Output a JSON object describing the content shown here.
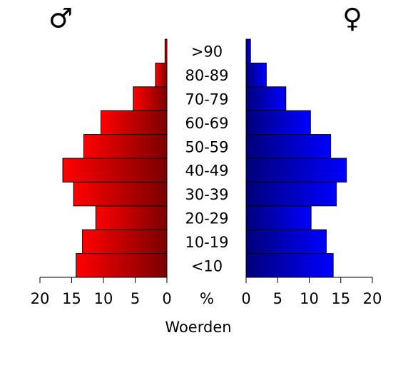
{
  "chart_data": {
    "type": "pyramid",
    "xlabel": "Woerden",
    "center_label": "%",
    "categories": [
      "<10",
      "10-19",
      "20-29",
      "30-39",
      "40-49",
      "50-59",
      "60-69",
      "70-79",
      "80-89",
      ">90"
    ],
    "series": [
      {
        "name": "♂",
        "color": "#ff0000",
        "values": [
          14.3,
          13.3,
          11.2,
          14.7,
          16.4,
          13.1,
          10.4,
          5.3,
          1.8,
          0.3
        ]
      },
      {
        "name": "♀",
        "color": "#0000ff",
        "values": [
          13.8,
          12.7,
          10.3,
          14.3,
          15.9,
          13.4,
          10.2,
          6.3,
          3.2,
          0.7
        ]
      }
    ],
    "xlim": [
      0,
      20
    ],
    "xticks": [
      0,
      5,
      10,
      15,
      20
    ]
  }
}
